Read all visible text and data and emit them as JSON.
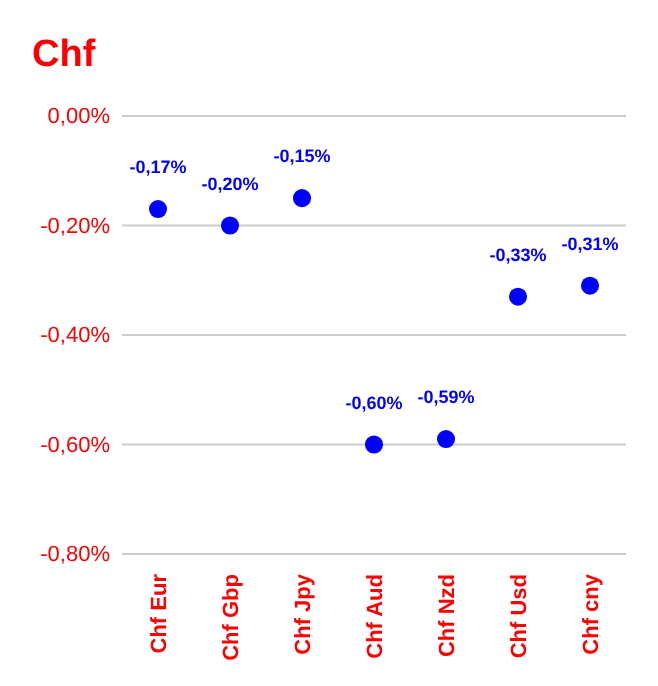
{
  "chart_data": {
    "type": "scatter",
    "title": "Chf",
    "categories": [
      "Chf Eur",
      "Chf Gbp",
      "Chf Jpy",
      "Chf Aud",
      "Chf Nzd",
      "Chf Usd",
      "Chf cny"
    ],
    "series": [
      {
        "color": "#0000ff",
        "values": [
          -0.17,
          -0.2,
          -0.15,
          -0.6,
          -0.59,
          -0.33,
          -0.31
        ],
        "value_labels": [
          "-0,17%",
          "-0,20%",
          "-0,15%",
          "-0,60%",
          "-0,59%",
          "-0,33%",
          "-0,31%"
        ]
      }
    ],
    "ylim": [
      -0.8,
      0
    ],
    "yticks": [
      {
        "value": 0,
        "label": "0,00%"
      },
      {
        "value": -0.2,
        "label": "-0,20%"
      },
      {
        "value": -0.4,
        "label": "-0,40%"
      },
      {
        "value": -0.6,
        "label": "-0,60%"
      },
      {
        "value": -0.8,
        "label": "-0,80%"
      }
    ],
    "grid": "y",
    "marker": "circle"
  }
}
